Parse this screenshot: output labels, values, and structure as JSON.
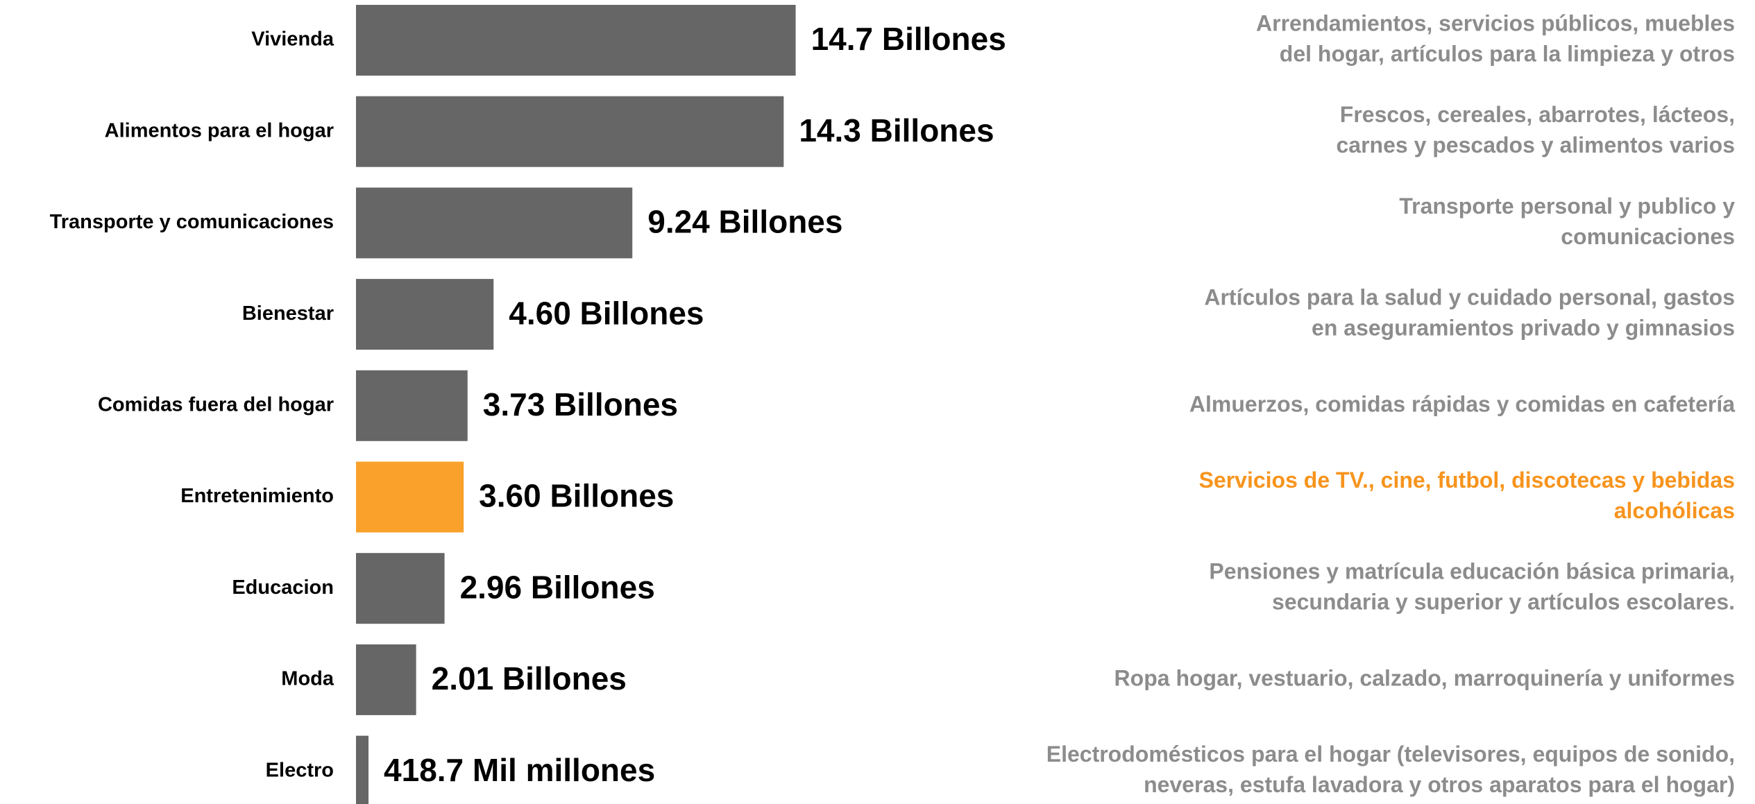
{
  "chart_data": {
    "type": "bar",
    "orientation": "horizontal",
    "categories": [
      "Vivienda",
      "Alimentos para el hogar",
      "Transporte y comunicaciones",
      "Bienestar",
      "Comidas fuera del hogar",
      "Entretenimiento",
      "Educacion",
      "Moda",
      "Electro"
    ],
    "values": [
      14.7,
      14.3,
      9.24,
      4.6,
      3.73,
      3.6,
      2.96,
      2.01,
      0.4187
    ],
    "value_labels": [
      "14.7 Billones",
      "14.3 Billones",
      "9.24 Billones",
      "4.60 Billones",
      "3.73 Billones",
      "3.60 Billones",
      "2.96 Billones",
      "2.01 Billones",
      "418.7 Mil millones"
    ],
    "colors": [
      "#666666",
      "#666666",
      "#666666",
      "#666666",
      "#666666",
      "#f9a12a",
      "#666666",
      "#666666",
      "#666666"
    ],
    "description_colors": [
      "#8c8c8c",
      "#8c8c8c",
      "#8c8c8c",
      "#8c8c8c",
      "#8c8c8c",
      "#f7941d",
      "#8c8c8c",
      "#8c8c8c",
      "#8c8c8c"
    ],
    "descriptions": [
      [
        "Arrendamientos, servicios públicos, muebles",
        "del hogar, artículos para la limpieza y otros"
      ],
      [
        "Frescos, cereales, abarrotes, lácteos,",
        "carnes y pescados y alimentos varios"
      ],
      [
        "Transporte personal y publico y",
        "comunicaciones"
      ],
      [
        "Artículos para la salud y cuidado personal, gastos",
        "en aseguramientos privado y gimnasios"
      ],
      [
        "Almuerzos, comidas rápidas y comidas en cafetería"
      ],
      [
        "Servicios de TV., cine, futbol, discotecas y bebidas",
        "alcohólicas"
      ],
      [
        "Pensiones y matrícula educación básica primaria,",
        "secundaria y superior y artículos escolares."
      ],
      [
        "Ropa hogar, vestuario, calzado, marroquinería  y uniformes"
      ],
      [
        "Electrodomésticos para el hogar (televisores, equipos de sonido,",
        "neveras, estufa lavadora y otros aparatos para el hogar)"
      ]
    ]
  }
}
